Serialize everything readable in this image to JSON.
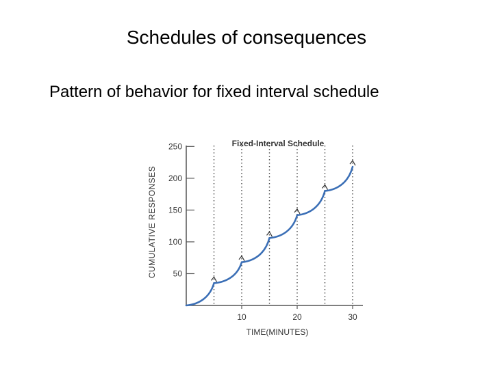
{
  "slide": {
    "title": "Schedules of consequences",
    "subtitle": "Pattern of behavior for fixed interval schedule"
  },
  "colors": {
    "curve": "#3b6fb6",
    "axis": "#555555",
    "text": "#333333"
  },
  "chart_data": {
    "type": "line",
    "title": "Fixed-Interval Schedule",
    "xlabel": "TIME(MINUTES)",
    "ylabel": "CUMULATIVE RESPONSES",
    "xlim": [
      0,
      30
    ],
    "ylim": [
      0,
      260
    ],
    "x_ticks": [
      10,
      20,
      30
    ],
    "y_ticks": [
      50,
      100,
      150,
      200,
      250
    ],
    "reinforcement_times": [
      5,
      10,
      15,
      20,
      25,
      30
    ],
    "series": [
      {
        "values": [
          [
            0,
            0
          ],
          [
            5,
            35
          ],
          [
            10,
            68
          ],
          [
            15,
            106
          ],
          [
            20,
            142
          ],
          [
            25,
            180
          ],
          [
            30,
            218
          ]
        ]
      }
    ],
    "grid": false,
    "reinforcement_lines": "dotted vertical lines at each interval"
  }
}
